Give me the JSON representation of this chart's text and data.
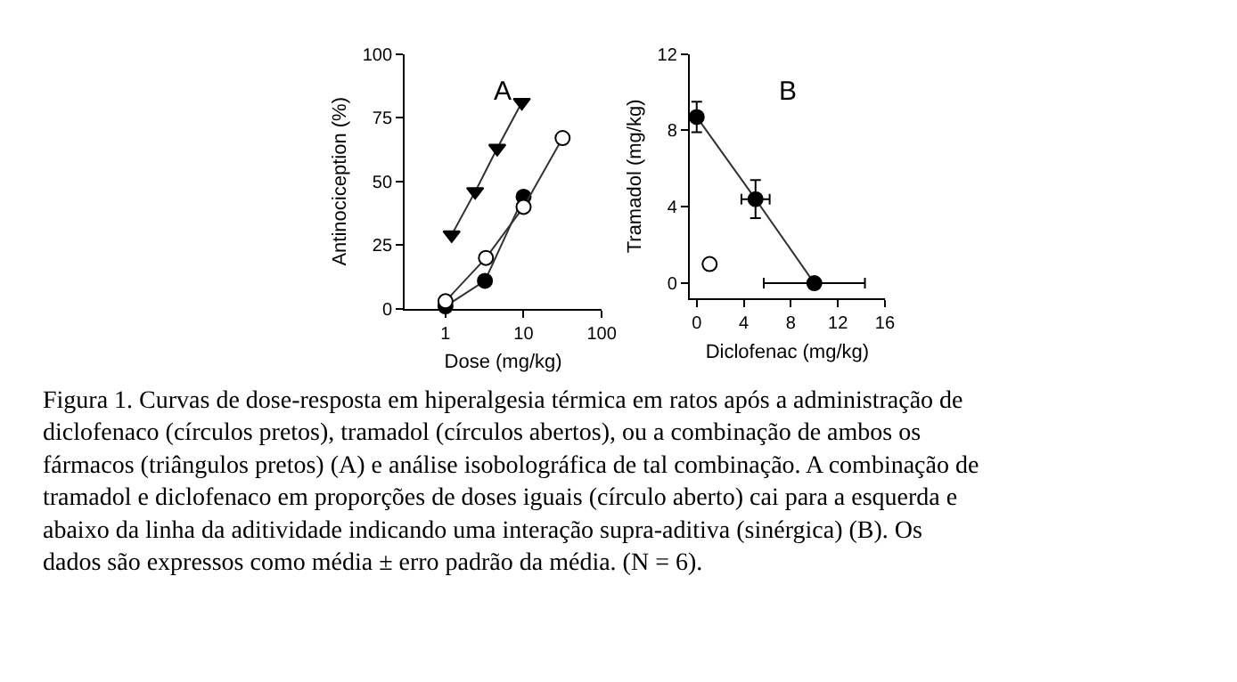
{
  "chart_data": [
    {
      "type": "line",
      "title": "A",
      "xlabel": "Dose (mg/kg)",
      "ylabel": "Antinociception (%)",
      "log": "x",
      "xlim": [
        0.3,
        100
      ],
      "xticks": [
        1,
        10,
        100
      ],
      "ylim": [
        0,
        100
      ],
      "yticks": [
        0,
        25,
        50,
        75,
        100
      ],
      "grid": false,
      "series": [
        {
          "color": "#000000",
          "marker": "triangle",
          "x": [
            1.2,
            2.4,
            4.6,
            9.5
          ],
          "values": [
            29,
            46,
            63,
            81
          ]
        },
        {
          "color": "#000000",
          "marker": "circle",
          "x": [
            1,
            3.2,
            10
          ],
          "values": [
            1,
            11,
            44
          ]
        },
        {
          "color": "#ffffff",
          "marker": "circle",
          "x": [
            1,
            3.3,
            10,
            31.6
          ],
          "values": [
            3,
            20,
            40,
            67
          ]
        }
      ],
      "annotations": [
        "Figura 1. Curvas de dose-resposta em hiperalgesia térmica em ratos após a administração de diclofenaco (círculos pretos), tramadol (círculos abertos), ou a combinação de ambos os fármacos (triângulos pretos) (A) e análise isobolográfica de tal combinação. A combinação de tramadol e diclofenaco em proporções de doses iguais (círculo aberto) cai para a esquerda e abaixo da linha da aditividade indicando uma interação supra-aditiva (sinérgica) (B). Os dados são expressos como média ± erro padrão da média. (N = 6)."
      ]
    },
    {
      "type": "line",
      "title": "B",
      "xlabel": "Diclofenac (mg/kg)",
      "ylabel": "Tramadol (mg/kg)",
      "xlim": [
        -0.6,
        16
      ],
      "xticks": [
        0,
        4,
        8,
        12,
        16
      ],
      "ylim": [
        -0.8,
        12
      ],
      "yticks": [
        0,
        4,
        8,
        12
      ],
      "grid": false,
      "series": [
        {
          "color": "#000000",
          "marker": "circle",
          "x": [
            0,
            5,
            10
          ],
          "values": [
            8.7,
            4.4,
            0
          ],
          "errors": [
            0.8,
            1,
            null
          ],
          "xerrors": [
            null,
            1.2,
            4.3
          ]
        },
        {
          "type": "scatter",
          "color": "#ffffff",
          "marker": "circle",
          "x": [
            1.1
          ],
          "values": [
            1.0
          ]
        }
      ]
    }
  ]
}
